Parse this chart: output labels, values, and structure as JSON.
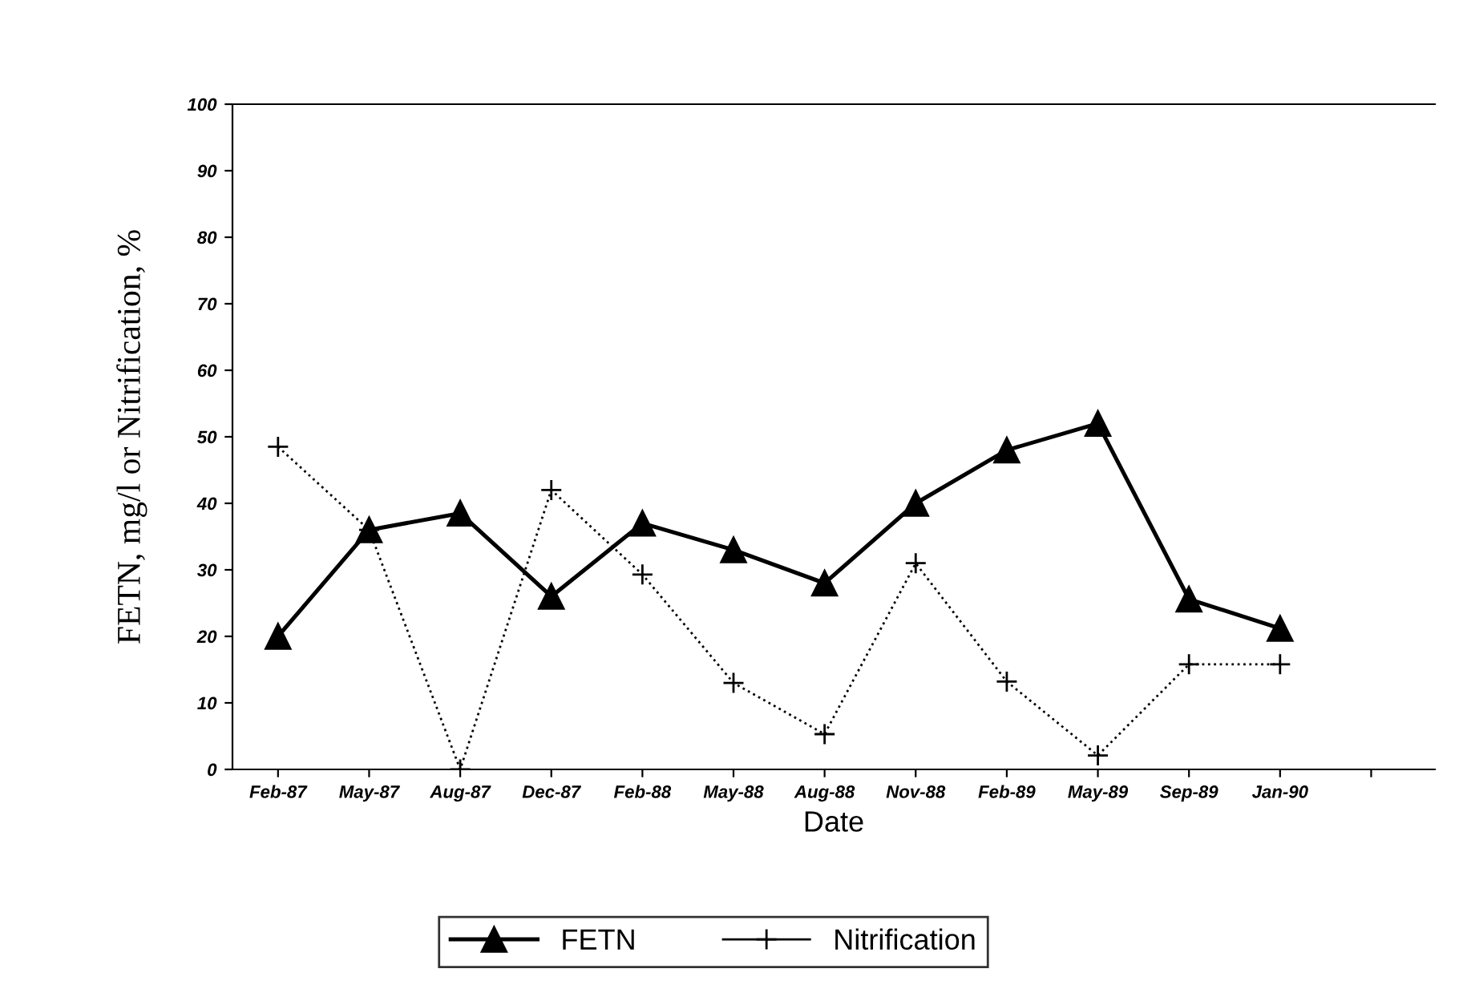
{
  "chart_data": {
    "type": "line",
    "xlabel": "Date",
    "ylabel": "FETN, mg/l or Nitrification, %",
    "categories": [
      "Feb-87",
      "May-87",
      "Aug-87",
      "Dec-87",
      "Feb-88",
      "May-88",
      "Aug-88",
      "Nov-88",
      "Feb-89",
      "May-89",
      "Sep-89",
      "Jan-90",
      null
    ],
    "series": [
      {
        "name": "FETN",
        "color": "#000000",
        "marker": "triangle",
        "line_style": "solid",
        "values": [
          20,
          36,
          38.5,
          26,
          37,
          33,
          28,
          40,
          48,
          52,
          25.6,
          21.2,
          null
        ]
      },
      {
        "name": "Nitrification",
        "color": "#000000",
        "marker": "cross",
        "line_style": "dotted",
        "values": [
          48.5,
          36,
          0,
          42,
          29.3,
          13,
          5.3,
          31,
          13.2,
          2.1,
          15.8,
          15.8,
          null
        ]
      }
    ],
    "ylim": [
      0,
      100
    ],
    "yticks": [
      0,
      10,
      20,
      30,
      40,
      50,
      60,
      70,
      80,
      90,
      100
    ],
    "grid": false,
    "legend": "bottom"
  }
}
